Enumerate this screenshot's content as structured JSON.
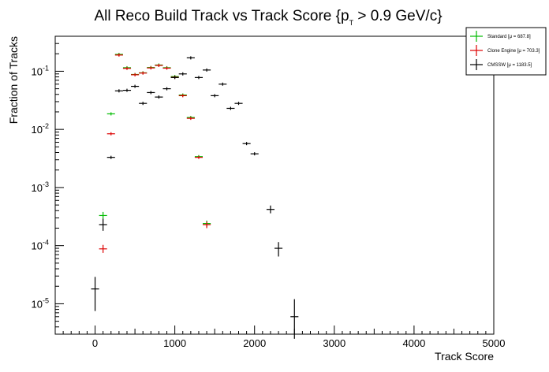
{
  "chart_data": {
    "type": "scatter",
    "title": "All Reco Build Track vs Track Score {p",
    "title_sub": "T",
    "title_tail": " > 0.9 GeV/c}",
    "xlabel": "Track Score",
    "ylabel": "Fraction of Tracks",
    "xlim": [
      -500,
      5000
    ],
    "ylim": [
      3e-06,
      0.4
    ],
    "yscale": "log",
    "grid": false,
    "legend_position": "top-right",
    "x_ticks": [
      {
        "value": 0,
        "label": "0"
      },
      {
        "value": 1000,
        "label": "1000"
      },
      {
        "value": 2000,
        "label": "2000"
      },
      {
        "value": 3000,
        "label": "3000"
      },
      {
        "value": 4000,
        "label": "4000"
      },
      {
        "value": 5000,
        "label": "5000"
      }
    ],
    "y_ticks": [
      {
        "value": 1e-05,
        "base": "10",
        "exp": "-5"
      },
      {
        "value": 0.0001,
        "base": "10",
        "exp": "-4"
      },
      {
        "value": 0.001,
        "base": "10",
        "exp": "-3"
      },
      {
        "value": 0.01,
        "base": "10",
        "exp": "-2"
      },
      {
        "value": 0.1,
        "base": "10",
        "exp": "-1"
      }
    ],
    "bin_half_width": 50,
    "series": [
      {
        "name": "Standard  [μ = 687.8]",
        "color": "#00bb00",
        "points": [
          {
            "x": 100,
            "y": 0.00033,
            "lo": 0.00029,
            "hi": 0.00038
          },
          {
            "x": 200,
            "y": 0.0185
          },
          {
            "x": 300,
            "y": 0.195
          },
          {
            "x": 400,
            "y": 0.115
          },
          {
            "x": 500,
            "y": 0.088
          },
          {
            "x": 600,
            "y": 0.094
          },
          {
            "x": 700,
            "y": 0.116
          },
          {
            "x": 800,
            "y": 0.128
          },
          {
            "x": 900,
            "y": 0.115
          },
          {
            "x": 1000,
            "y": 0.081
          },
          {
            "x": 1100,
            "y": 0.039
          },
          {
            "x": 1200,
            "y": 0.016
          },
          {
            "x": 1300,
            "y": 0.0034
          },
          {
            "x": 1400,
            "y": 0.00024,
            "lo": 0.00021,
            "hi": 0.00027
          }
        ]
      },
      {
        "name": "Clone Engine  [μ = 703.3]",
        "color": "#dd0000",
        "points": [
          {
            "x": 100,
            "y": 8.8e-05,
            "lo": 7.5e-05,
            "hi": 0.000103
          },
          {
            "x": 200,
            "y": 0.0084
          },
          {
            "x": 300,
            "y": 0.19
          },
          {
            "x": 400,
            "y": 0.112
          },
          {
            "x": 500,
            "y": 0.087
          },
          {
            "x": 600,
            "y": 0.093
          },
          {
            "x": 700,
            "y": 0.114
          },
          {
            "x": 800,
            "y": 0.126
          },
          {
            "x": 900,
            "y": 0.113
          },
          {
            "x": 1000,
            "y": 0.079
          },
          {
            "x": 1100,
            "y": 0.038
          },
          {
            "x": 1200,
            "y": 0.0155
          },
          {
            "x": 1300,
            "y": 0.0033
          },
          {
            "x": 1400,
            "y": 0.00023,
            "lo": 0.0002,
            "hi": 0.00026
          }
        ]
      },
      {
        "name": "CMSSW  [μ = 1183.5]",
        "color": "#000000",
        "points": [
          {
            "x": 0,
            "y": 1.8e-05,
            "lo": 7.5e-06,
            "hi": 2.9e-05
          },
          {
            "x": 100,
            "y": 0.00023,
            "lo": 0.00018,
            "hi": 0.00029
          },
          {
            "x": 200,
            "y": 0.0033
          },
          {
            "x": 300,
            "y": 0.046
          },
          {
            "x": 400,
            "y": 0.047
          },
          {
            "x": 500,
            "y": 0.055
          },
          {
            "x": 600,
            "y": 0.028
          },
          {
            "x": 700,
            "y": 0.043
          },
          {
            "x": 800,
            "y": 0.036
          },
          {
            "x": 900,
            "y": 0.05
          },
          {
            "x": 1000,
            "y": 0.078
          },
          {
            "x": 1100,
            "y": 0.09
          },
          {
            "x": 1200,
            "y": 0.17
          },
          {
            "x": 1300,
            "y": 0.078
          },
          {
            "x": 1400,
            "y": 0.105
          },
          {
            "x": 1500,
            "y": 0.038
          },
          {
            "x": 1600,
            "y": 0.06
          },
          {
            "x": 1700,
            "y": 0.023
          },
          {
            "x": 1800,
            "y": 0.028
          },
          {
            "x": 1900,
            "y": 0.0057
          },
          {
            "x": 2000,
            "y": 0.0038
          },
          {
            "x": 2200,
            "y": 0.00042,
            "lo": 0.00036,
            "hi": 0.00049
          },
          {
            "x": 2300,
            "y": 9e-05,
            "lo": 6.5e-05,
            "hi": 0.000115
          },
          {
            "x": 2500,
            "y": 6e-06,
            "lo": 2.5e-06,
            "hi": 1.2e-05
          }
        ]
      }
    ]
  }
}
